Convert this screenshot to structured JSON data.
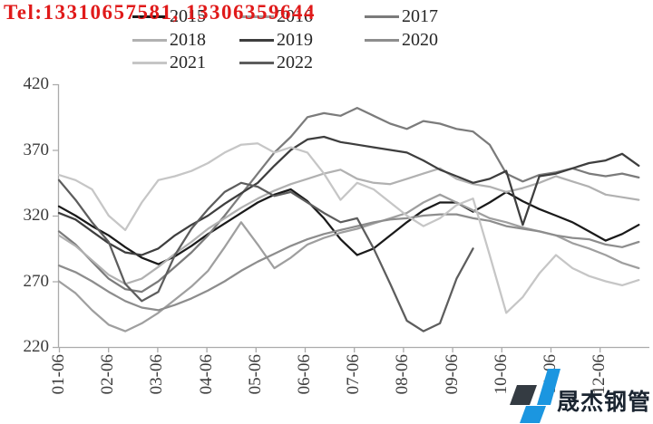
{
  "header": {
    "tel": "Tel:13310657581, 13306359644",
    "tel_color": "#e01a1a"
  },
  "watermark": {
    "brand": "晟杰钢管",
    "text_color": "#1b2531",
    "diamond_dark": "#343b42",
    "diamond_blue": "#1b96e0"
  },
  "legend": {
    "rows": [
      [
        "2015",
        "2016",
        "2017"
      ],
      [
        "2018",
        "2019",
        "2020"
      ],
      [
        "2021",
        "2022"
      ]
    ]
  },
  "chart_data": {
    "type": "line",
    "title": "",
    "xlabel": "",
    "ylabel": "",
    "grid": false,
    "legend_position": "top",
    "ylim": [
      220,
      420
    ],
    "y_ticks": [
      420,
      370,
      320,
      270,
      220
    ],
    "x_tick_labels": [
      "01-06",
      "02-06",
      "03-06",
      "04-06",
      "05-06",
      "06-06",
      "07-06",
      "08-06",
      "09-06",
      "10-06",
      "11-06",
      "12-06"
    ],
    "x_unit": "date (MM-DD), one tick per month",
    "axis_color": "#ababab",
    "series": [
      {
        "name": "2015",
        "color": "#1a1a1a",
        "x_start": 1.0,
        "x_step": 0.337,
        "values": [
          327,
          320,
          312,
          305,
          296,
          288,
          283,
          289,
          297,
          306,
          314,
          322,
          330,
          336,
          340,
          331,
          318,
          302,
          290,
          295,
          305,
          315,
          324,
          330,
          330,
          323,
          330,
          338,
          331,
          325,
          320,
          315,
          308,
          301,
          306,
          313
        ]
      },
      {
        "name": "2016",
        "color": "#9f9f9f",
        "x_start": 1.0,
        "x_step": 0.337,
        "values": [
          270,
          261,
          248,
          237,
          232,
          238,
          246,
          256,
          266,
          278,
          296,
          315,
          298,
          280,
          288,
          298,
          303,
          307,
          310,
          314,
          318,
          322,
          330,
          336,
          330,
          324,
          318,
          315,
          311,
          308,
          305,
          299,
          295,
          290,
          284,
          280
        ]
      },
      {
        "name": "2017",
        "color": "#7b7b7b",
        "x_start": 1.0,
        "x_step": 0.337,
        "values": [
          308,
          298,
          285,
          272,
          264,
          262,
          270,
          281,
          292,
          305,
          320,
          336,
          352,
          368,
          380,
          395,
          398,
          396,
          402,
          396,
          390,
          386,
          392,
          390,
          386,
          384,
          374,
          352,
          346,
          351,
          353,
          356,
          352,
          350,
          352,
          349
        ]
      },
      {
        "name": "2018",
        "color": "#b1b1b1",
        "x_start": 1.0,
        "x_step": 0.337,
        "values": [
          305,
          297,
          286,
          275,
          268,
          272,
          281,
          291,
          300,
          310,
          318,
          326,
          333,
          339,
          344,
          348,
          352,
          355,
          348,
          345,
          344,
          348,
          352,
          356,
          348,
          344,
          342,
          338,
          341,
          345,
          350,
          346,
          342,
          336,
          334,
          332
        ]
      },
      {
        "name": "2019",
        "color": "#3e3e3e",
        "x_start": 1.0,
        "x_step": 0.337,
        "values": [
          322,
          317,
          308,
          299,
          292,
          290,
          295,
          305,
          313,
          320,
          329,
          337,
          345,
          358,
          370,
          378,
          380,
          376,
          374,
          372,
          370,
          368,
          362,
          355,
          350,
          345,
          348,
          354,
          313,
          350,
          352,
          356,
          360,
          362,
          367,
          358
        ]
      },
      {
        "name": "2020",
        "color": "#8d8d8d",
        "x_start": 1.0,
        "x_step": 0.337,
        "values": [
          282,
          277,
          270,
          262,
          255,
          250,
          248,
          252,
          257,
          263,
          270,
          278,
          285,
          291,
          297,
          302,
          306,
          309,
          312,
          315,
          317,
          318,
          320,
          321,
          321,
          318,
          316,
          312,
          310,
          308,
          305,
          303,
          302,
          298,
          296,
          300
        ]
      },
      {
        "name": "2021",
        "color": "#c6c6c6",
        "x_start": 1.0,
        "x_step": 0.337,
        "values": [
          351,
          347,
          340,
          320,
          309,
          330,
          347,
          350,
          354,
          360,
          368,
          374,
          375,
          368,
          372,
          368,
          352,
          332,
          345,
          340,
          330,
          320,
          312,
          318,
          328,
          333,
          290,
          246,
          258,
          276,
          290,
          280,
          274,
          270,
          267,
          271
        ]
      },
      {
        "name": "2022",
        "color": "#5d5d5d",
        "x_start": 1.0,
        "x_step": 0.337,
        "values": [
          347,
          332,
          315,
          300,
          268,
          255,
          262,
          290,
          310,
          325,
          338,
          345,
          342,
          335,
          338,
          330,
          322,
          315,
          318,
          295,
          268,
          240,
          232,
          238,
          272,
          295
        ]
      }
    ]
  }
}
